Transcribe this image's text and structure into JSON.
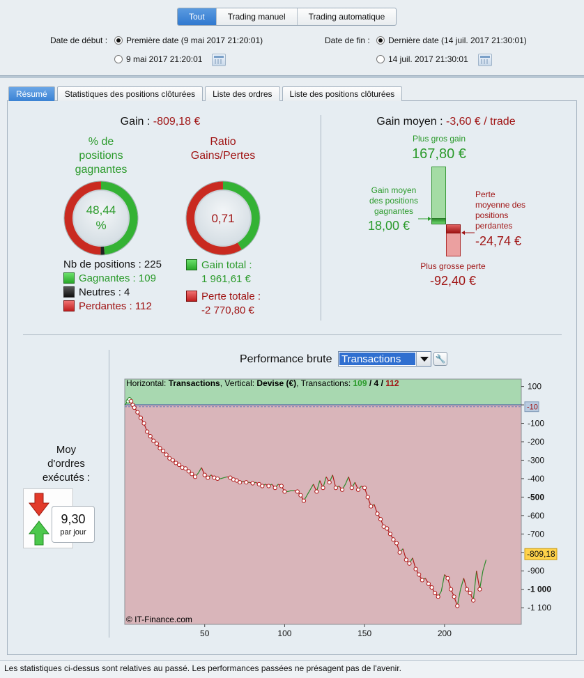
{
  "top_tabs": [
    "Tout",
    "Trading manuel",
    "Trading automatique"
  ],
  "dates": {
    "start_label": "Date de début :",
    "start_option1": "Première date (9 mai 2017 21:20:01)",
    "start_option2": "9 mai 2017 21:20:01",
    "end_label": "Date de fin :",
    "end_option1": "Dernière date (14 juil. 2017 21:30:01)",
    "end_option2": "14 juil. 2017 21:30:01"
  },
  "tabs": [
    "Résumé",
    "Statistiques des positions clôturées",
    "Liste des ordres",
    "Liste des positions clôturées"
  ],
  "summary": {
    "gain_label": "Gain :",
    "gain_value": "-809,18 €",
    "pct_title": "% de\npositions\ngagnantes",
    "pct_value": "48,44\n%",
    "win_fraction": 0.4844,
    "neutral_fraction": 0.0178,
    "ratio_title": "Ratio\nGains/Pertes",
    "ratio_value": "0,71",
    "nb_positions": "Nb de positions : 225",
    "gagnantes": "Gagnantes : 109",
    "neutres": "Neutres : 4",
    "perdantes": "Perdantes : 112",
    "gain_total_label": "Gain total :",
    "gain_total_value": "1 961,61 €",
    "perte_totale_label": "Perte totale :",
    "perte_totale_value": "-2 770,80 €",
    "gain_fraction": 0.4145
  },
  "gain_moyen": {
    "label": "Gain moyen :",
    "value": "-3,60 € / trade",
    "plus_gros_gain_label": "Plus gros gain",
    "plus_gros_gain_value": "167,80 €",
    "gain_moyen_gagnantes_label": "Gain moyen\ndes positions\ngagnantes",
    "gain_moyen_gagnantes_value": "18,00 €",
    "perte_moyenne_label": "Perte\nmoyenne des\npositions\nperdantes",
    "perte_moyenne_value": "-24,74 €",
    "plus_grosse_perte_label": "Plus grosse perte",
    "plus_grosse_perte_value": "-92,40 €"
  },
  "orders": {
    "label": "Moy\nd'ordres\nexécutés :",
    "value": "9,30",
    "unit": "par jour"
  },
  "performance": {
    "label": "Performance brute",
    "dropdown_value": "Transactions",
    "info_prefix": "Horizontal: ",
    "info_h": "Transactions",
    "info_mid": ", Vertical: ",
    "info_v": "Devise (€)",
    "info_tx": ", Transactions: ",
    "info_win": "109",
    "info_sep1": " / ",
    "info_neutral": "4",
    "info_sep2": " / ",
    "info_lose": "112",
    "copyright": "© IT-Finance.com",
    "ref_label": "-10",
    "current_label": "-809,18"
  },
  "chart_data": {
    "type": "line",
    "title": "Performance brute",
    "xlabel": "Transactions",
    "ylabel": "Devise (€)",
    "xlim": [
      0,
      248
    ],
    "ylim": [
      -1190,
      140
    ],
    "x_ticks": [
      50,
      100,
      150,
      200
    ],
    "x_tick_labels": [
      "50",
      "100",
      "150",
      "200"
    ],
    "y_ticks": [
      100,
      0,
      -100,
      -200,
      -300,
      -400,
      -500,
      -600,
      -700,
      -800,
      -900,
      -1000,
      -1100
    ],
    "y_tick_labels": [
      "100",
      "0",
      "-100",
      "-200",
      "-300",
      "-400",
      "-500",
      "-600",
      "-700",
      "-800",
      "-900",
      "-1 000",
      "-1 100"
    ],
    "reference_line": -10,
    "last_value": -809.18,
    "series": [
      {
        "x": [
          0,
          2,
          3,
          4,
          5,
          6,
          8,
          10,
          12,
          14,
          16,
          18,
          20,
          22,
          24,
          26,
          28,
          30,
          32,
          34,
          36,
          38,
          40,
          42,
          44,
          46,
          48,
          50,
          52,
          54,
          56,
          58,
          60,
          62,
          64,
          66,
          68,
          70,
          72,
          74,
          76,
          78,
          80,
          82,
          84,
          86,
          88,
          90,
          92,
          94,
          96,
          98,
          100,
          102,
          104,
          106,
          108,
          110,
          112,
          114,
          116,
          118,
          120,
          122,
          124,
          126,
          128,
          130,
          132,
          134,
          136,
          138,
          140,
          142,
          144,
          146,
          148,
          150,
          152,
          154,
          156,
          158,
          160,
          162,
          164,
          166,
          168,
          170,
          172,
          174,
          176,
          178,
          180,
          182,
          184,
          186,
          188,
          190,
          192,
          194,
          196,
          198,
          200,
          202,
          204,
          206,
          208,
          210,
          212,
          214,
          216,
          218,
          220,
          222,
          224,
          226
        ],
        "y": [
          0,
          20,
          30,
          20,
          0,
          -15,
          -40,
          -70,
          -100,
          -145,
          -170,
          -195,
          -210,
          -235,
          -250,
          -270,
          -290,
          -300,
          -315,
          -325,
          -340,
          -345,
          -360,
          -375,
          -390,
          -370,
          -340,
          -380,
          -395,
          -380,
          -395,
          -400,
          -400,
          -395,
          -390,
          -395,
          -405,
          -410,
          -420,
          -415,
          -420,
          -420,
          -425,
          -420,
          -430,
          -440,
          -430,
          -440,
          -430,
          -450,
          -430,
          -440,
          -470,
          -470,
          -465,
          -465,
          -470,
          -490,
          -520,
          -490,
          -460,
          -430,
          -470,
          -410,
          -450,
          -390,
          -420,
          -380,
          -450,
          -440,
          -460,
          -430,
          -390,
          -450,
          -420,
          -460,
          -440,
          -450,
          -500,
          -550,
          -540,
          -590,
          -620,
          -660,
          -670,
          -700,
          -730,
          -750,
          -800,
          -780,
          -840,
          -860,
          -830,
          -890,
          -920,
          -950,
          -940,
          -970,
          -990,
          -1020,
          -1040,
          -1010,
          -920,
          -940,
          -1000,
          -1040,
          -1090,
          -1000,
          -940,
          -1000,
          -1020,
          -1060,
          -900,
          -1000,
          -900,
          -840
        ]
      }
    ]
  },
  "footer": "Les statistiques ci-dessus sont relatives au passé. Les performances passées ne présagent pas de l'avenir."
}
